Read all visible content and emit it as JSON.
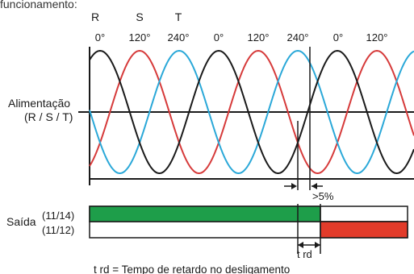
{
  "top_caption": "funcionamento:",
  "phase_names": [
    "R",
    "S",
    "T"
  ],
  "angle_labels": [
    "0°",
    "120°",
    "240°",
    "0°",
    "120°",
    "240°",
    "0°",
    "120°"
  ],
  "supply_label_line1": "Alimentação",
  "supply_label_line2": "(R / S / T)",
  "threshold_label": ">5%",
  "output_label": "Saída",
  "output_contact_top": "(11/14)",
  "output_contact_bottom": "(11/12)",
  "trd_label": "t rd",
  "footnote": "t rd = Tempo de retardo no desligamento",
  "colors": {
    "phase_r": "#1a1a1a",
    "phase_s": "#d63a3a",
    "phase_t": "#2aa8d8",
    "contact_1114_on": "#1e9e4a",
    "contact_1112_on": "#e23b2a",
    "reference_dotted": "#1a1a1a"
  },
  "output_states": {
    "contact_1114_on_until_period": 3.83,
    "contact_1112_on_from_period": 3.83
  },
  "failure_start_period": 3.17
}
